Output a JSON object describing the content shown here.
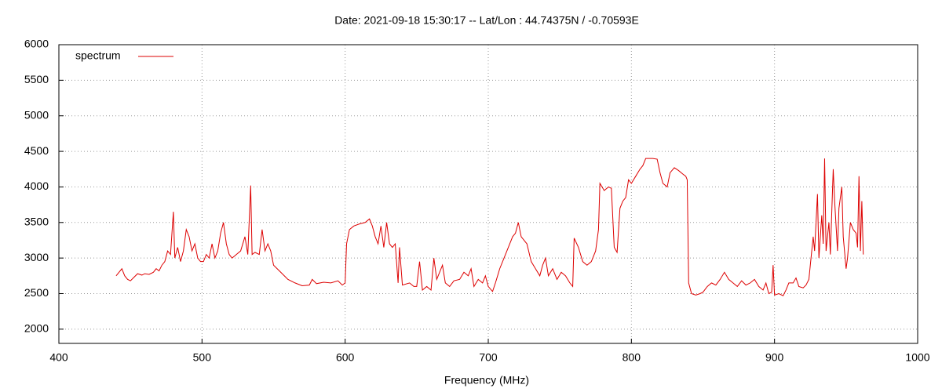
{
  "chart_data": {
    "type": "line",
    "title": "Date: 2021-09-18 15:30:17  --  Lat/Lon : 44.74375N / -0.70593E",
    "x_label": "Frequency (MHz)",
    "xlim": [
      400,
      1000
    ],
    "xticks": [
      400,
      500,
      600,
      700,
      800,
      900,
      1000
    ],
    "ylim": [
      1800,
      6000
    ],
    "yticks": [
      2000,
      2500,
      3000,
      3500,
      4000,
      4500,
      5000,
      5500,
      6000
    ],
    "grid": true,
    "legend": "top-left",
    "series": [
      {
        "name": "spectrum",
        "color": "#dd0000",
        "x": [
          440,
          442,
          444,
          446,
          448,
          450,
          452,
          455,
          458,
          460,
          463,
          466,
          468,
          470,
          472,
          474,
          476,
          478,
          480,
          481,
          483,
          485,
          487,
          489,
          491,
          493,
          495,
          497,
          499,
          501,
          503,
          505,
          507,
          509,
          511,
          513,
          515,
          517,
          519,
          521,
          524,
          527,
          530,
          532,
          534,
          535,
          537,
          540,
          542,
          544,
          546,
          548,
          550,
          555,
          560,
          565,
          570,
          575,
          577,
          580,
          585,
          590,
          595,
          598,
          600,
          601,
          603,
          606,
          610,
          614,
          617,
          619,
          621,
          623,
          625,
          627,
          629,
          631,
          633,
          635,
          637,
          638,
          640,
          645,
          648,
          650,
          652,
          654,
          657,
          660,
          662,
          664,
          666,
          668,
          670,
          673,
          676,
          680,
          683,
          686,
          688,
          690,
          693,
          696,
          698,
          700,
          703,
          705,
          708,
          711,
          714,
          717,
          719,
          721,
          723,
          725,
          727,
          730,
          733,
          736,
          738,
          740,
          742,
          745,
          748,
          751,
          754,
          757,
          759,
          760,
          763,
          766,
          769,
          772,
          775,
          777,
          778,
          781,
          784,
          786,
          788,
          790,
          792,
          794,
          796,
          798,
          800,
          803,
          806,
          808,
          810,
          813,
          815,
          818,
          820,
          822,
          825,
          827,
          830,
          833,
          836,
          838,
          839,
          840,
          842,
          845,
          848,
          850,
          853,
          856,
          859,
          862,
          865,
          868,
          871,
          874,
          877,
          880,
          883,
          886,
          889,
          892,
          894,
          896,
          898,
          899,
          900,
          903,
          906,
          908,
          910,
          913,
          915,
          917,
          920,
          922,
          924,
          925,
          927,
          928,
          930,
          931,
          933,
          934,
          935,
          936,
          938,
          939,
          941,
          942,
          944,
          945,
          947,
          948,
          950,
          951,
          953,
          955,
          957,
          958,
          959,
          960,
          961,
          962
        ],
        "values": [
          2750,
          2800,
          2850,
          2750,
          2700,
          2680,
          2720,
          2780,
          2760,
          2780,
          2770,
          2800,
          2850,
          2820,
          2900,
          2950,
          3100,
          3050,
          3650,
          3000,
          3150,
          2950,
          3100,
          3400,
          3300,
          3100,
          3200,
          3000,
          2950,
          2950,
          3050,
          3000,
          3200,
          3000,
          3100,
          3350,
          3500,
          3200,
          3050,
          3000,
          3050,
          3100,
          3300,
          3050,
          4020,
          3050,
          3080,
          3050,
          3400,
          3100,
          3200,
          3100,
          2900,
          2800,
          2700,
          2650,
          2610,
          2620,
          2700,
          2640,
          2660,
          2650,
          2680,
          2620,
          2650,
          3200,
          3400,
          3450,
          3480,
          3500,
          3550,
          3450,
          3300,
          3200,
          3450,
          3150,
          3500,
          3200,
          3150,
          3200,
          2650,
          3150,
          2620,
          2650,
          2600,
          2600,
          2950,
          2550,
          2600,
          2550,
          3000,
          2700,
          2800,
          2900,
          2650,
          2600,
          2680,
          2700,
          2800,
          2750,
          2850,
          2600,
          2700,
          2650,
          2750,
          2600,
          2530,
          2650,
          2850,
          3000,
          3150,
          3300,
          3350,
          3500,
          3300,
          3250,
          3200,
          2950,
          2850,
          2750,
          2900,
          3000,
          2750,
          2850,
          2700,
          2800,
          2750,
          2650,
          2600,
          3280,
          3150,
          2950,
          2900,
          2950,
          3100,
          3400,
          4050,
          3950,
          4000,
          3980,
          3150,
          3080,
          3700,
          3800,
          3850,
          4100,
          4050,
          4150,
          4250,
          4300,
          4400,
          4400,
          4400,
          4390,
          4200,
          4050,
          4000,
          4200,
          4270,
          4230,
          4180,
          4150,
          4100,
          2650,
          2500,
          2480,
          2500,
          2520,
          2600,
          2650,
          2620,
          2700,
          2800,
          2700,
          2650,
          2600,
          2680,
          2620,
          2650,
          2700,
          2600,
          2550,
          2650,
          2500,
          2520,
          2900,
          2480,
          2500,
          2470,
          2550,
          2650,
          2650,
          2720,
          2600,
          2580,
          2620,
          2700,
          2900,
          3300,
          3100,
          3900,
          3000,
          3600,
          3200,
          4400,
          3100,
          3500,
          3050,
          4250,
          3800,
          3100,
          3700,
          4000,
          3300,
          2850,
          3000,
          3500,
          3400,
          3350,
          3150,
          4150,
          3100,
          3800,
          3050
        ]
      }
    ]
  }
}
